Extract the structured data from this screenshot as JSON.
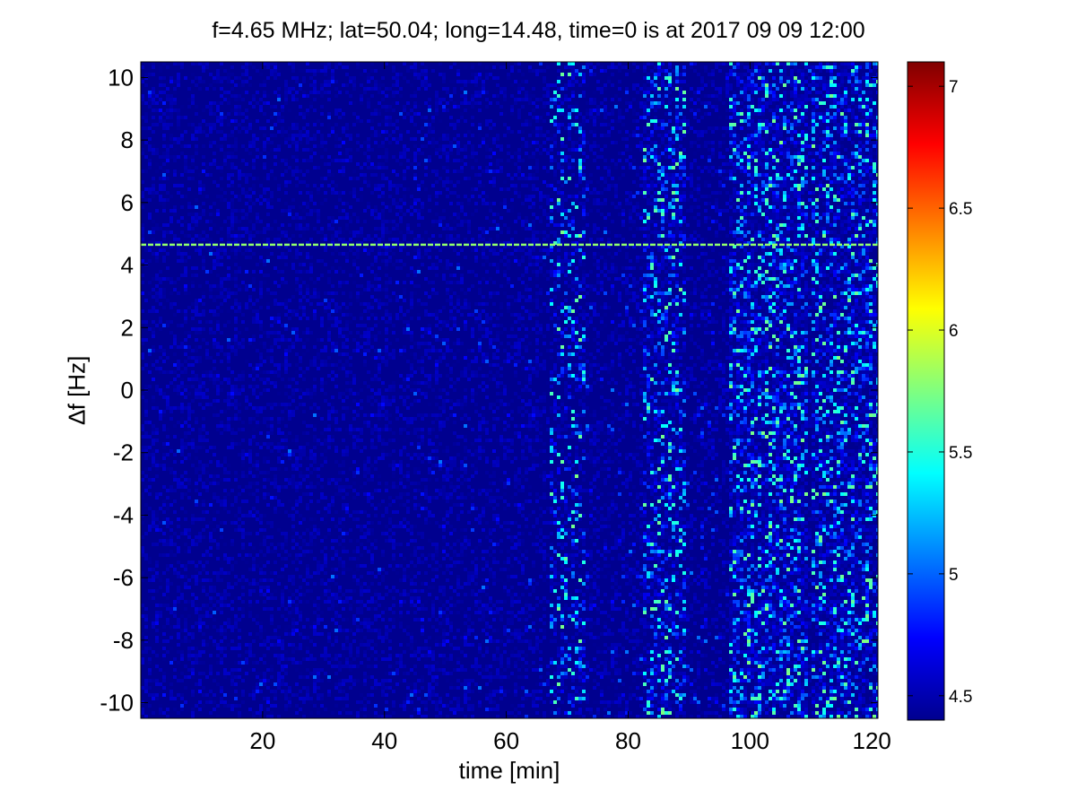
{
  "chart_data": {
    "type": "heatmap",
    "title": "f=4.65 MHz;  lat=50.04; long=14.48, time=0 is at 2017 09 09 12:00",
    "xlabel": "time [min]",
    "ylabel": "∆f [Hz]",
    "xlim": [
      0,
      121
    ],
    "ylim": [
      -10.5,
      10.5
    ],
    "x_ticks": [
      20,
      40,
      60,
      80,
      100,
      120
    ],
    "y_ticks": [
      10,
      8,
      6,
      4,
      2,
      0,
      -2,
      -4,
      -6,
      -8,
      -10
    ],
    "colorbar": {
      "colormap": "jet",
      "range": [
        4.4,
        7.1
      ],
      "ticks": [
        4.5,
        5,
        5.5,
        6,
        6.5,
        7
      ]
    },
    "background_level": 4.45,
    "carrier_line": {
      "delta_f": 4.65,
      "level": 5.8
    },
    "noise_bands": [
      {
        "t_start": 67,
        "t_end": 73,
        "intensity": 0.55
      },
      {
        "t_start": 82,
        "t_end": 89,
        "intensity": 0.7
      },
      {
        "t_start": 96,
        "t_end": 109,
        "intensity": 0.85
      },
      {
        "t_start": 110,
        "t_end": 121,
        "intensity": 0.8
      }
    ]
  }
}
